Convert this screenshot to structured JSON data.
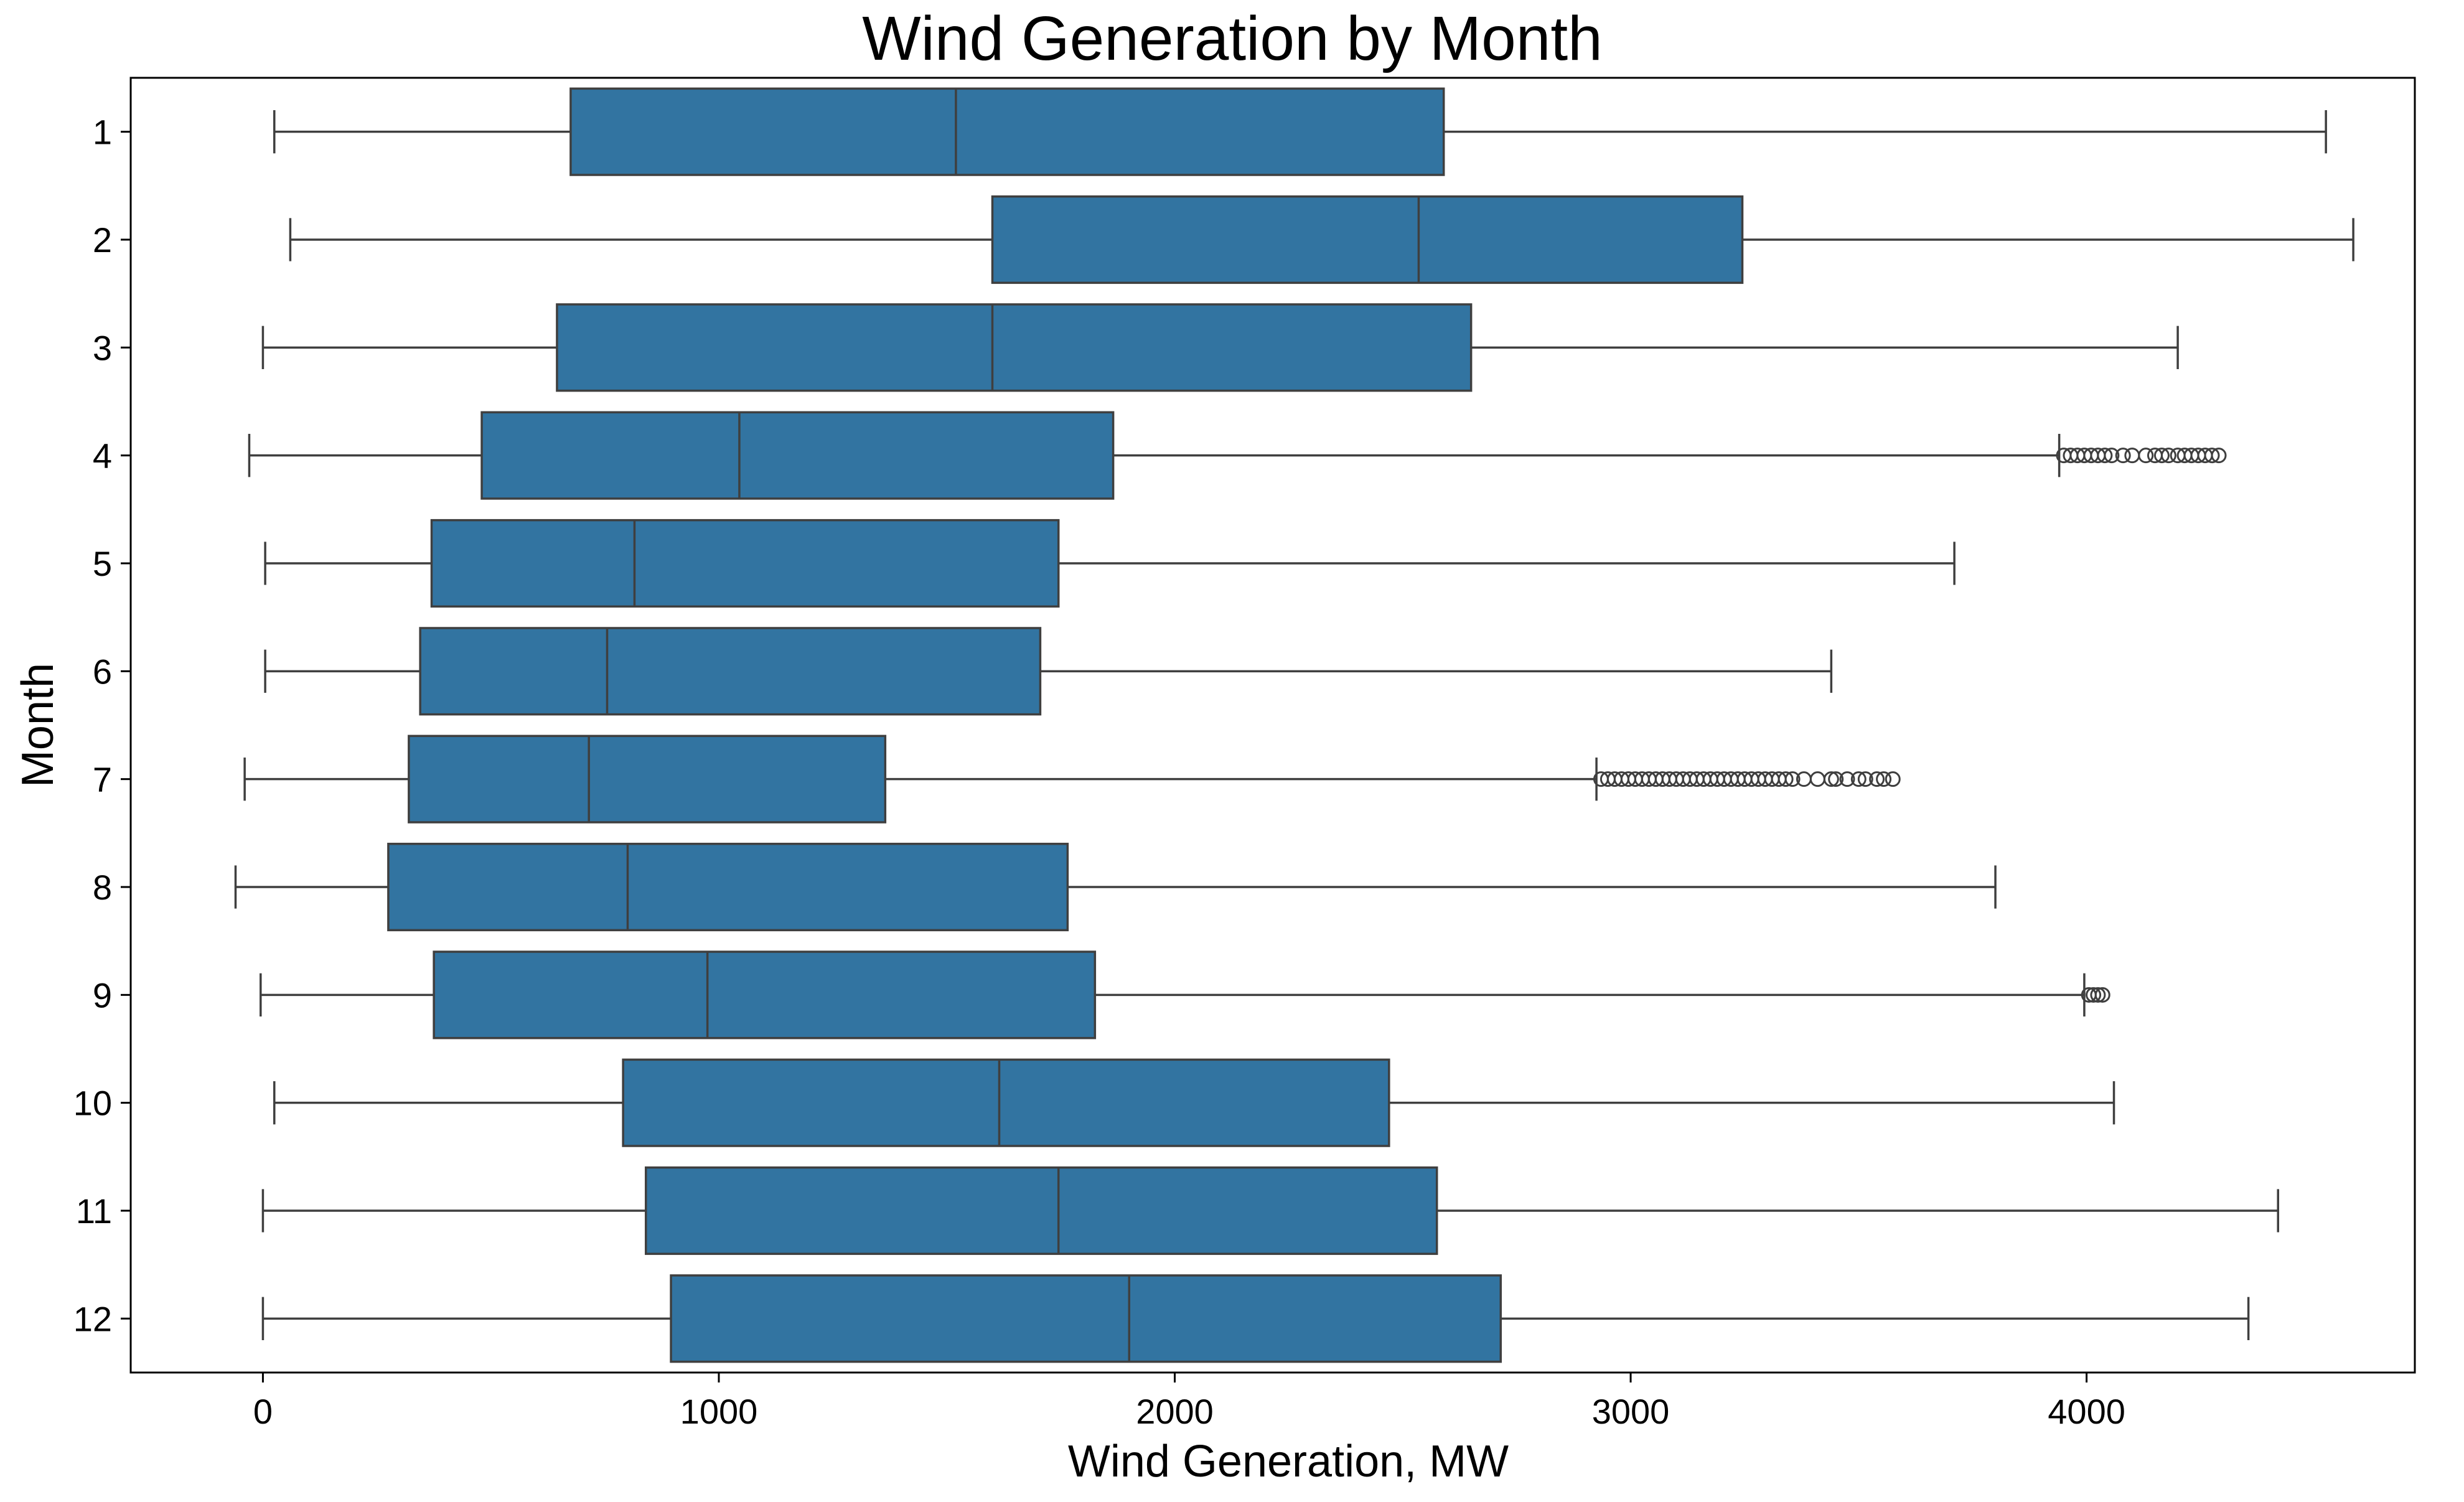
{
  "chart_data": {
    "type": "boxplot",
    "orientation": "horizontal",
    "title": "Wind Generation by Month",
    "xlabel": "Wind Generation, MW",
    "ylabel": "Month",
    "xlim": [
      -290,
      4720
    ],
    "xticks": [
      0,
      1000,
      2000,
      3000,
      4000
    ],
    "xtick_labels": [
      "0",
      "1000",
      "2000",
      "3000",
      "4000"
    ],
    "categories": [
      "1",
      "2",
      "3",
      "4",
      "5",
      "6",
      "7",
      "8",
      "9",
      "10",
      "11",
      "12"
    ],
    "box_color": "#3274a1",
    "line_color": "#3f3f3f",
    "grid": false,
    "boxes": [
      {
        "month": "1",
        "whisker_low": 25,
        "q1": 675,
        "median": 1520,
        "q3": 2590,
        "whisker_high": 4525,
        "outliers": []
      },
      {
        "month": "2",
        "whisker_low": 60,
        "q1": 1600,
        "median": 2535,
        "q3": 3245,
        "whisker_high": 4585,
        "outliers": []
      },
      {
        "month": "3",
        "whisker_low": 0,
        "q1": 645,
        "median": 1600,
        "q3": 2650,
        "whisker_high": 4200,
        "outliers": []
      },
      {
        "month": "4",
        "whisker_low": -30,
        "q1": 480,
        "median": 1045,
        "q3": 1865,
        "whisker_high": 3940,
        "outliers": [
          3950,
          3965,
          3980,
          3995,
          4010,
          4025,
          4040,
          4055,
          4080,
          4100,
          4130,
          4150,
          4165,
          4180,
          4200,
          4215,
          4230,
          4245,
          4260,
          4275,
          4290
        ]
      },
      {
        "month": "5",
        "whisker_low": 5,
        "q1": 370,
        "median": 815,
        "q3": 1745,
        "whisker_high": 3710,
        "outliers": []
      },
      {
        "month": "6",
        "whisker_low": 5,
        "q1": 345,
        "median": 755,
        "q3": 1705,
        "whisker_high": 3440,
        "outliers": []
      },
      {
        "month": "7",
        "whisker_low": -40,
        "q1": 320,
        "median": 715,
        "q3": 1365,
        "whisker_high": 2925,
        "outliers": [
          2935,
          2950,
          2965,
          2980,
          2995,
          3010,
          3025,
          3040,
          3055,
          3070,
          3085,
          3100,
          3115,
          3130,
          3145,
          3160,
          3175,
          3190,
          3205,
          3220,
          3235,
          3250,
          3265,
          3280,
          3295,
          3310,
          3325,
          3340,
          3355,
          3380,
          3410,
          3440,
          3450,
          3475,
          3500,
          3515,
          3540,
          3555,
          3575
        ]
      },
      {
        "month": "8",
        "whisker_low": -60,
        "q1": 275,
        "median": 800,
        "q3": 1765,
        "whisker_high": 3800,
        "outliers": []
      },
      {
        "month": "9",
        "whisker_low": -5,
        "q1": 375,
        "median": 975,
        "q3": 1825,
        "whisker_high": 3995,
        "outliers": [
          4005,
          4015,
          4025,
          4035
        ]
      },
      {
        "month": "10",
        "whisker_low": 25,
        "q1": 790,
        "median": 1615,
        "q3": 2470,
        "whisker_high": 4060,
        "outliers": []
      },
      {
        "month": "11",
        "whisker_low": 0,
        "q1": 840,
        "median": 1745,
        "q3": 2575,
        "whisker_high": 4420,
        "outliers": []
      },
      {
        "month": "12",
        "whisker_low": 0,
        "q1": 895,
        "median": 1900,
        "q3": 2715,
        "whisker_high": 4355,
        "outliers": []
      }
    ]
  }
}
